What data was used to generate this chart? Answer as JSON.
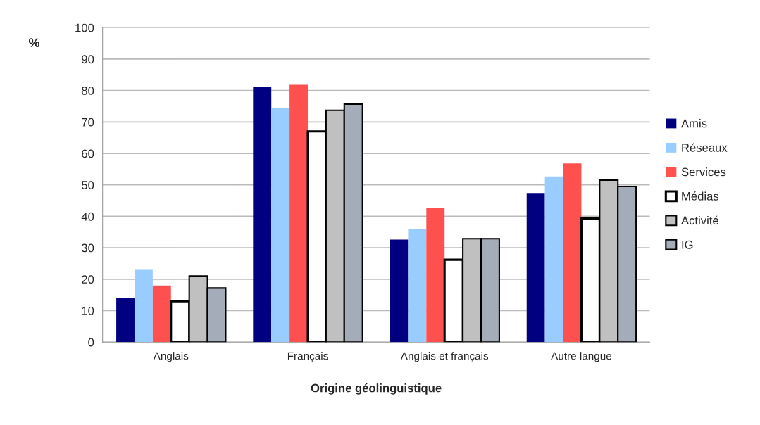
{
  "chart_data": {
    "type": "bar",
    "xlabel": "Origine géolinguistique",
    "ylabel": "%",
    "categories": [
      "Anglais",
      "Français",
      "Anglais et français",
      "Autre langue"
    ],
    "series": [
      {
        "name": "Amis",
        "color": "#000080",
        "values": [
          14,
          81.2,
          32.6,
          47.4
        ]
      },
      {
        "name": "Réseaux",
        "color": "#99ccff",
        "values": [
          23,
          74.4,
          35.9,
          52.7
        ]
      },
      {
        "name": "Services",
        "color": "#ff5050",
        "values": [
          18,
          81.8,
          42.7,
          56.8
        ]
      },
      {
        "name": "Médias",
        "color": "#ffffff",
        "values": [
          13,
          67,
          26.2,
          39.3
        ]
      },
      {
        "name": "Activité",
        "color": "#c0c0c0",
        "values": [
          21,
          73.7,
          32.9,
          51.5
        ]
      },
      {
        "name": "IG",
        "color": "#a4abb9",
        "values": [
          17.2,
          75.7,
          32.9,
          49.5
        ]
      }
    ],
    "ylim": [
      0,
      100
    ],
    "yticks": [
      0,
      10,
      20,
      30,
      40,
      50,
      60,
      70,
      80,
      90,
      100
    ],
    "grid": "y",
    "legend": "right"
  }
}
